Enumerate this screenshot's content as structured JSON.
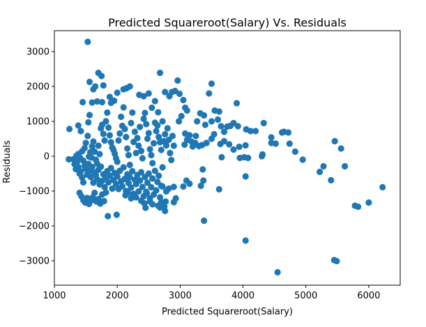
{
  "chart_data": {
    "type": "scatter",
    "title": "Predicted Squareroot(Salary) Vs. Residuals",
    "xlabel": "Predicted Squareroot(Salary)",
    "ylabel": "Residuals",
    "xlim": [
      1000,
      6500
    ],
    "ylim": [
      -3700,
      3600
    ],
    "xticks": [
      1000,
      2000,
      3000,
      4000,
      5000,
      6000
    ],
    "yticks": [
      -3000,
      -2000,
      -1000,
      0,
      1000,
      2000,
      3000
    ],
    "grid": false,
    "legend": "none",
    "marker_color": "#1f77b4",
    "series": [
      {
        "points": [
          [
            1530,
            3280
          ],
          [
            1700,
            2390
          ],
          [
            1750,
            2300
          ],
          [
            1560,
            2130
          ],
          [
            1650,
            2000
          ],
          [
            1780,
            2030
          ],
          [
            1620,
            1920
          ],
          [
            2100,
            1920
          ],
          [
            2150,
            1950
          ],
          [
            2200,
            2000
          ],
          [
            2000,
            1820
          ],
          [
            1880,
            1700
          ],
          [
            1950,
            1590
          ],
          [
            1450,
            1550
          ],
          [
            1680,
            1570
          ],
          [
            1760,
            1550
          ],
          [
            1600,
            1540
          ],
          [
            1900,
            1530
          ],
          [
            2350,
            1760
          ],
          [
            2420,
            1720
          ],
          [
            2500,
            1800
          ],
          [
            2600,
            1580
          ],
          [
            2550,
            1390
          ],
          [
            2650,
            1260
          ],
          [
            2680,
            2390
          ],
          [
            2760,
            1840
          ],
          [
            2830,
            1720
          ],
          [
            2870,
            1840
          ],
          [
            2920,
            1870
          ],
          [
            2960,
            2170
          ],
          [
            2990,
            1790
          ],
          [
            3050,
            1610
          ],
          [
            3080,
            1390
          ],
          [
            3110,
            1310
          ],
          [
            2980,
            1000
          ],
          [
            3020,
            1150
          ],
          [
            3460,
            1800
          ],
          [
            3500,
            2080
          ],
          [
            3900,
            1520
          ],
          [
            3550,
            1310
          ],
          [
            3620,
            1280
          ],
          [
            3320,
            1230
          ],
          [
            3380,
            1170
          ],
          [
            3270,
            1000
          ],
          [
            3400,
            900
          ],
          [
            3500,
            1000
          ],
          [
            3600,
            1050
          ],
          [
            3650,
            860
          ],
          [
            3700,
            700
          ],
          [
            3750,
            850
          ],
          [
            3800,
            870
          ],
          [
            3850,
            950
          ],
          [
            3920,
            860
          ],
          [
            4050,
            770
          ],
          [
            4120,
            720
          ],
          [
            4200,
            720
          ],
          [
            4330,
            950
          ],
          [
            4450,
            540
          ],
          [
            4520,
            360
          ],
          [
            4620,
            680
          ],
          [
            4650,
            700
          ],
          [
            4720,
            680
          ],
          [
            4740,
            360
          ],
          [
            4830,
            130
          ],
          [
            4950,
            -100
          ],
          [
            3420,
            380
          ],
          [
            3500,
            500
          ],
          [
            3540,
            630
          ],
          [
            3640,
            350
          ],
          [
            3700,
            430
          ],
          [
            3780,
            340
          ],
          [
            3850,
            190
          ],
          [
            3940,
            270
          ],
          [
            4040,
            310
          ],
          [
            4020,
            -30
          ],
          [
            4080,
            -50
          ],
          [
            3950,
            -50
          ],
          [
            3660,
            -30
          ],
          [
            3350,
            320
          ],
          [
            3300,
            290
          ],
          [
            3200,
            280
          ],
          [
            3180,
            420
          ],
          [
            3070,
            330
          ],
          [
            3110,
            470
          ],
          [
            3080,
            650
          ],
          [
            3150,
            600
          ],
          [
            3250,
            580
          ],
          [
            3240,
            380
          ],
          [
            3360,
            -380
          ],
          [
            3370,
            -700
          ],
          [
            3330,
            -850
          ],
          [
            3620,
            -950
          ],
          [
            3100,
            -700
          ],
          [
            3150,
            -790
          ],
          [
            3050,
            -870
          ],
          [
            2900,
            -880
          ],
          [
            2820,
            -930
          ],
          [
            2720,
            -870
          ],
          [
            2780,
            -1010
          ],
          [
            2930,
            -1210
          ],
          [
            2900,
            -1320
          ],
          [
            2770,
            -1300
          ],
          [
            2700,
            -1320
          ],
          [
            2650,
            -1420
          ],
          [
            2560,
            -1380
          ],
          [
            2450,
            -1480
          ],
          [
            2680,
            -1470
          ],
          [
            2760,
            -1570
          ],
          [
            2750,
            -1440
          ],
          [
            3380,
            -1850
          ],
          [
            4040,
            -2420
          ],
          [
            4550,
            -3330
          ],
          [
            4310,
            50
          ],
          [
            4300,
            0
          ],
          [
            4450,
            380
          ],
          [
            4040,
            -580
          ],
          [
            5220,
            -450
          ],
          [
            5280,
            -290
          ],
          [
            5400,
            -690
          ],
          [
            5460,
            430
          ],
          [
            5560,
            220
          ],
          [
            5620,
            -290
          ],
          [
            5450,
            -2980
          ],
          [
            5490,
            -3010
          ],
          [
            5780,
            -1420
          ],
          [
            5830,
            -1450
          ],
          [
            6000,
            -1330
          ],
          [
            6220,
            -890
          ],
          [
            1230,
            -90
          ],
          [
            1240,
            780
          ],
          [
            1380,
            880
          ],
          [
            1420,
            720
          ],
          [
            1380,
            60
          ],
          [
            1410,
            -50
          ],
          [
            1350,
            10
          ],
          [
            1440,
            140
          ],
          [
            1460,
            -130
          ],
          [
            1480,
            230
          ],
          [
            1500,
            380
          ],
          [
            1530,
            580
          ],
          [
            1540,
            970
          ],
          [
            1560,
            1180
          ],
          [
            1550,
            -10
          ],
          [
            1570,
            110
          ],
          [
            1590,
            -40
          ],
          [
            1600,
            280
          ],
          [
            1620,
            420
          ],
          [
            1640,
            130
          ],
          [
            1660,
            -100
          ],
          [
            1680,
            -210
          ],
          [
            1700,
            300
          ],
          [
            1720,
            60
          ],
          [
            1740,
            800
          ],
          [
            1760,
            900
          ],
          [
            1780,
            640
          ],
          [
            1800,
            450
          ],
          [
            1820,
            1000
          ],
          [
            1840,
            1250
          ],
          [
            1860,
            820
          ],
          [
            1880,
            600
          ],
          [
            1900,
            400
          ],
          [
            1920,
            250
          ],
          [
            1940,
            180
          ],
          [
            1960,
            70
          ],
          [
            1980,
            -60
          ],
          [
            2000,
            -160
          ],
          [
            2020,
            450
          ],
          [
            2040,
            650
          ],
          [
            2060,
            1130
          ],
          [
            2080,
            870
          ],
          [
            2100,
            1400
          ],
          [
            2120,
            780
          ],
          [
            2140,
            550
          ],
          [
            2160,
            220
          ],
          [
            2180,
            30
          ],
          [
            2200,
            -250
          ],
          [
            2220,
            950
          ],
          [
            2240,
            1250
          ],
          [
            2260,
            410
          ],
          [
            2280,
            700
          ],
          [
            2300,
            90
          ],
          [
            2320,
            520
          ],
          [
            2340,
            300
          ],
          [
            2360,
            840
          ],
          [
            2380,
            150
          ],
          [
            2400,
            -60
          ],
          [
            2420,
            1070
          ],
          [
            2440,
            1240
          ],
          [
            2460,
            920
          ],
          [
            2480,
            500
          ],
          [
            2500,
            660
          ],
          [
            2520,
            200
          ],
          [
            2540,
            30
          ],
          [
            2560,
            -200
          ],
          [
            2580,
            370
          ],
          [
            2600,
            960
          ],
          [
            2620,
            720
          ],
          [
            2640,
            880
          ],
          [
            2660,
            550
          ],
          [
            2680,
            400
          ],
          [
            2700,
            180
          ],
          [
            2720,
            1000
          ],
          [
            2740,
            430
          ],
          [
            2760,
            630
          ],
          [
            2780,
            310
          ],
          [
            2800,
            800
          ],
          [
            2820,
            470
          ],
          [
            2840,
            90
          ],
          [
            2860,
            -110
          ],
          [
            2880,
            580
          ],
          [
            2900,
            300
          ],
          [
            1300,
            -90
          ],
          [
            1320,
            -230
          ],
          [
            1340,
            -370
          ],
          [
            1360,
            -160
          ],
          [
            1380,
            -310
          ],
          [
            1400,
            -500
          ],
          [
            1420,
            -440
          ],
          [
            1440,
            -610
          ],
          [
            1460,
            -750
          ],
          [
            1480,
            -280
          ],
          [
            1500,
            -360
          ],
          [
            1520,
            -530
          ],
          [
            1540,
            -220
          ],
          [
            1560,
            -420
          ],
          [
            1580,
            -600
          ],
          [
            1600,
            -310
          ],
          [
            1620,
            -760
          ],
          [
            1640,
            -470
          ],
          [
            1660,
            -540
          ],
          [
            1680,
            -660
          ],
          [
            1700,
            -390
          ],
          [
            1720,
            -810
          ],
          [
            1740,
            -300
          ],
          [
            1760,
            -710
          ],
          [
            1780,
            -520
          ],
          [
            1800,
            -890
          ],
          [
            1820,
            -620
          ],
          [
            1840,
            -430
          ],
          [
            1860,
            -750
          ],
          [
            1880,
            -560
          ],
          [
            1900,
            -340
          ],
          [
            1920,
            -930
          ],
          [
            1940,
            -680
          ],
          [
            1960,
            -480
          ],
          [
            1980,
            -800
          ],
          [
            2000,
            -580
          ],
          [
            2020,
            -940
          ],
          [
            2040,
            -420
          ],
          [
            2060,
            -720
          ],
          [
            2080,
            -860
          ],
          [
            2100,
            -320
          ],
          [
            2120,
            -650
          ],
          [
            2140,
            -1000
          ],
          [
            2160,
            -520
          ],
          [
            2180,
            -770
          ],
          [
            2200,
            -600
          ],
          [
            2220,
            -900
          ],
          [
            2240,
            -430
          ],
          [
            2260,
            -1080
          ],
          [
            2280,
            -680
          ],
          [
            2300,
            -800
          ],
          [
            2320,
            -540
          ],
          [
            2340,
            -1010
          ],
          [
            2360,
            -700
          ],
          [
            2380,
            -460
          ],
          [
            2400,
            -880
          ],
          [
            2420,
            -1150
          ],
          [
            2440,
            -600
          ],
          [
            2460,
            -1020
          ],
          [
            2480,
            -760
          ],
          [
            2500,
            -500
          ],
          [
            2520,
            -1210
          ],
          [
            2540,
            -890
          ],
          [
            2560,
            -640
          ],
          [
            2580,
            -1100
          ],
          [
            2600,
            -420
          ],
          [
            2620,
            -980
          ],
          [
            2640,
            -740
          ],
          [
            2660,
            -560
          ],
          [
            2680,
            -1180
          ],
          [
            2700,
            -850
          ],
          [
            2720,
            -320
          ],
          [
            1400,
            -1050
          ],
          [
            1430,
            -1150
          ],
          [
            1460,
            -1260
          ],
          [
            1490,
            -1330
          ],
          [
            1520,
            -1200
          ],
          [
            1550,
            -1370
          ],
          [
            1580,
            -1280
          ],
          [
            1610,
            -1180
          ],
          [
            1640,
            -1050
          ],
          [
            1670,
            -1300
          ],
          [
            1700,
            -1230
          ],
          [
            1730,
            -1360
          ],
          [
            1760,
            -1100
          ],
          [
            1790,
            -1290
          ],
          [
            1820,
            -1040
          ],
          [
            1850,
            -1720
          ],
          [
            1990,
            -1680
          ],
          [
            2130,
            -1120
          ],
          [
            2170,
            -1050
          ],
          [
            2220,
            -1210
          ],
          [
            2300,
            -1180
          ],
          [
            2380,
            -1280
          ],
          [
            2430,
            -1350
          ],
          [
            2470,
            -1060
          ],
          [
            2520,
            -1300
          ]
        ]
      }
    ]
  }
}
